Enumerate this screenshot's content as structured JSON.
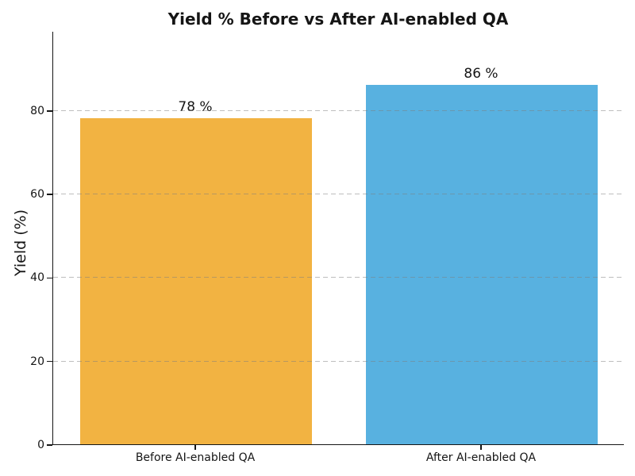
{
  "chart_data": {
    "type": "bar",
    "title": "Yield % Before vs After AI-enabled QA",
    "ylabel": "Yield (%)",
    "xlabel": "",
    "categories": [
      "Before AI-enabled QA",
      "After AI-enabled QA"
    ],
    "values": [
      78,
      86
    ],
    "value_labels": [
      "78 %",
      "86 %"
    ],
    "bar_colors": [
      "#F2B342",
      "#58B1E0"
    ],
    "yticks": [
      0,
      20,
      40,
      60,
      80
    ],
    "ylim": [
      0,
      98.8
    ],
    "grid": {
      "axis": "y",
      "style": "dashed",
      "color": "#c6c6c6",
      "drawn_above_bars": true
    },
    "legend": "none",
    "spines": [
      "left",
      "bottom"
    ],
    "background": "#ffffff"
  }
}
